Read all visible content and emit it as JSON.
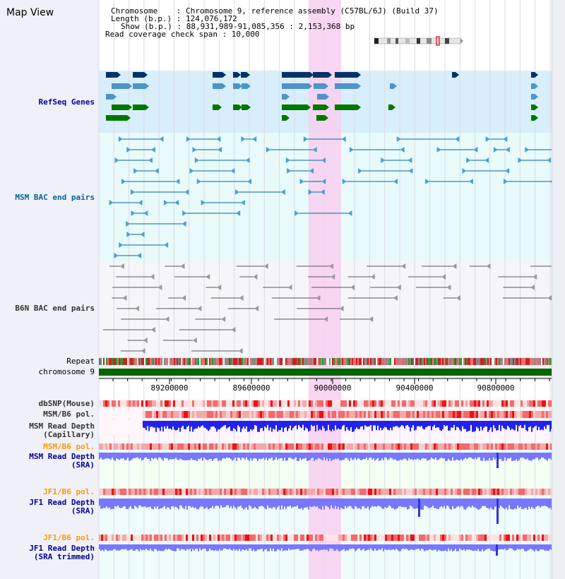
{
  "header": {
    "title": "Map View",
    "chromosome_line": "Chromosome    : Chromosome 9, reference assembly (C57BL/6J) (Build 37)",
    "length_line": "Length (b.p.) : 124,076,172",
    "show_line": "Show (b.p.) : 88,931,989-91,085,356 : 2,153,368 bp",
    "coverage_line": "Read coverage check span : 10,000"
  },
  "tracks": {
    "refseq": {
      "label": "RefSeq Genes",
      "color": "#0000aa"
    },
    "msm_bac": {
      "label": "MSM BAC end pairs",
      "color": "#006699"
    },
    "b6n_bac": {
      "label": "B6N BAC end pairs",
      "color": "#333333"
    },
    "repeat": {
      "label": "Repeat",
      "color": "#000000"
    },
    "chromosome": {
      "label": "chromosome 9",
      "color": "#000000"
    },
    "dbsnp": {
      "label": "dbSNP(Mouse)",
      "color": "#333333"
    },
    "msm_b6_pol_1": {
      "label": "MSM/B6 pol.",
      "color": "#333333"
    },
    "msm_depth_cap": {
      "label": "MSM Read Depth",
      "label2": "(Capillary)",
      "color": "#333333"
    },
    "msm_b6_pol_2": {
      "label": "MSM/B6 pol.",
      "color": "#ff9900"
    },
    "msm_depth_sra": {
      "label": "MSM Read Depth",
      "label2": "(SRA)",
      "color": "#000099"
    },
    "jf1_b6_pol_1": {
      "label": "JF1/B6 pol.",
      "color": "#ff9900"
    },
    "jf1_depth_sra": {
      "label": "JF1 Read Depth",
      "label2": "(SRA)",
      "color": "#000099"
    },
    "jf1_b6_pol_2": {
      "label": "JF1/B6 pol.",
      "color": "#ff9900"
    },
    "jf1_depth_trim": {
      "label": "JF1 Read Depth",
      "label2": "(SRA trimmed)",
      "color": "#000099"
    }
  },
  "ruler": {
    "ticks": [
      "89200000",
      "89600000",
      "90000000",
      "90400000",
      "90800000"
    ]
  },
  "colors": {
    "highlight": "#f8d0f0",
    "refseq_dark": "#003366",
    "refseq_mid": "#4d94c8",
    "refseq_green": "#007700",
    "depth_blue": "#2222ee",
    "depth_light": "#7777ff"
  }
}
